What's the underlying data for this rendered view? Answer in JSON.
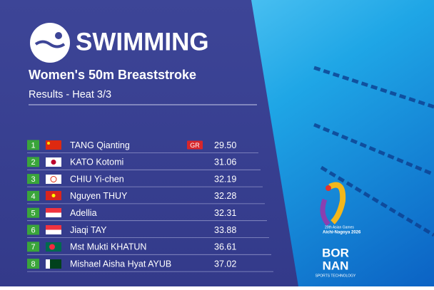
{
  "header": {
    "title": "SWIMMING",
    "subtitle": "Women's 50m Breaststroke",
    "heat": "Results - Heat 3/3"
  },
  "table": {
    "rows": [
      [
        "1",
        "TANG Qianting",
        "GR",
        "29.50"
      ],
      [
        "2",
        "KATO Kotomi",
        "",
        "31.06"
      ],
      [
        "3",
        "CHIU Yi-chen",
        "",
        "32.19"
      ],
      [
        "4",
        "Nguyen THUY",
        "",
        "32.28"
      ],
      [
        "5",
        "Adellia",
        "",
        "32.31"
      ],
      [
        "6",
        "Jiaqi TAY",
        "",
        "33.88"
      ],
      [
        "7",
        "Mst Mukti KHATUN",
        "",
        "36.61"
      ],
      [
        "8",
        "Mishael Aisha Hyat AYUB",
        "",
        "37.02"
      ]
    ]
  },
  "sponsors": {
    "games_line1": "20th Asian Games",
    "games_line2": "Aichi-Nagoya 2026",
    "brand_top": "BOR",
    "brand_bottom": "NAN",
    "brand_tag": "SPORTS TECHNOLOGY"
  }
}
